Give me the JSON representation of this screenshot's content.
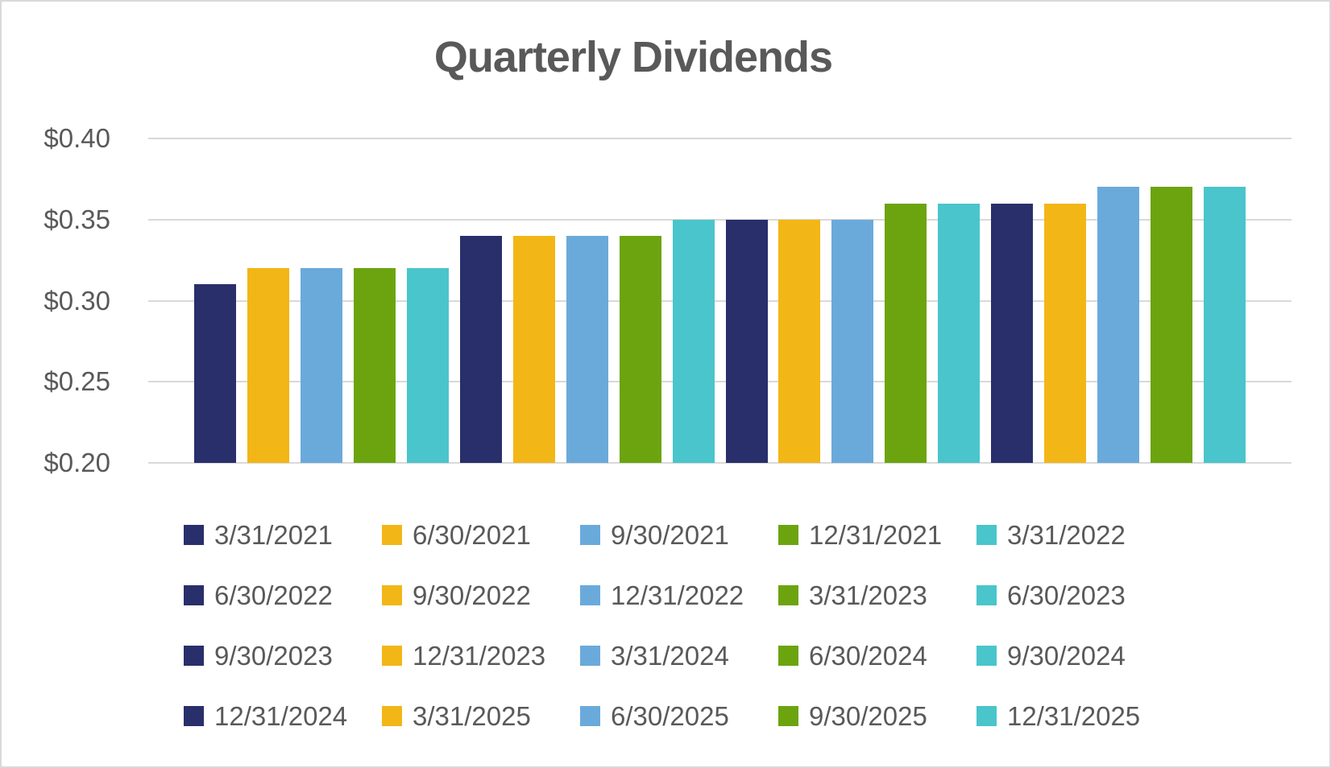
{
  "chart_data": {
    "type": "bar",
    "title": "Quarterly Dividends",
    "categories": [
      "3/31/2021",
      "6/30/2021",
      "9/30/2021",
      "12/31/2021",
      "3/31/2022",
      "6/30/2022",
      "9/30/2022",
      "12/31/2022",
      "3/31/2023",
      "6/30/2023",
      "9/30/2023",
      "12/31/2023",
      "3/31/2024",
      "6/30/2024",
      "9/30/2024",
      "12/31/2024",
      "3/31/2025",
      "6/30/2025",
      "9/30/2025",
      "12/31/2025"
    ],
    "values": [
      0.31,
      0.32,
      0.32,
      0.32,
      0.32,
      0.34,
      0.34,
      0.34,
      0.34,
      0.35,
      0.35,
      0.35,
      0.35,
      0.36,
      0.36,
      0.36,
      0.36,
      0.37,
      0.37,
      0.37
    ],
    "bar_colors_cycle": [
      "#292F6B",
      "#F2B616",
      "#6AAADB",
      "#6CA40F",
      "#49C5CB"
    ],
    "xlabel": "",
    "ylabel": "",
    "ylim": [
      0.2,
      0.4
    ],
    "y_axis": {
      "tick_values": [
        0.4,
        0.35,
        0.3,
        0.25,
        0.2
      ],
      "tick_labels": [
        "$0.40",
        "$0.35",
        "$0.30",
        "$0.25",
        "$0.20"
      ]
    },
    "grid": "horizontal",
    "legend": {
      "position": "bottom",
      "columns": 5,
      "rows": 4
    }
  },
  "colors": {
    "title_text": "#595959",
    "axis_text": "#595959",
    "legend_text": "#595959",
    "gridline": "#D9D9D9",
    "chart_border": "#D9D9D9",
    "background": "#FFFFFF"
  }
}
